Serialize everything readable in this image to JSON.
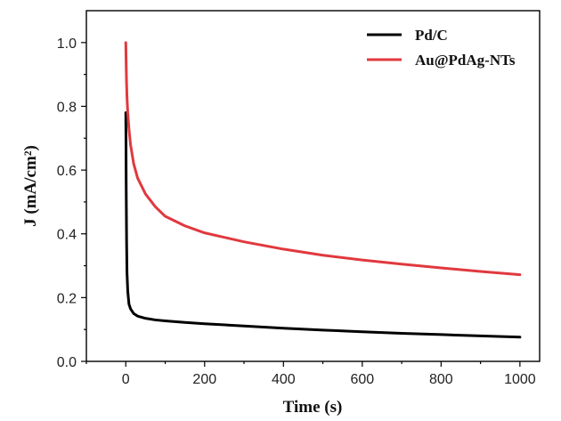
{
  "chart_data": {
    "type": "line",
    "xlabel": "Time (s)",
    "ylabel": "J (mA/cm²)",
    "xlim": [
      -100,
      1050
    ],
    "ylim": [
      0.0,
      1.1
    ],
    "xticks": [
      0,
      200,
      400,
      600,
      800,
      1000
    ],
    "xtick_labels": [
      "0",
      "200",
      "400",
      "600",
      "800",
      "1000"
    ],
    "yticks": [
      0.0,
      0.2,
      0.4,
      0.6,
      0.8,
      1.0
    ],
    "ytick_labels": [
      "0.0",
      "0.2",
      "0.4",
      "0.6",
      "0.8",
      "1.0"
    ],
    "grid": false,
    "legend_position": "top-right",
    "series": [
      {
        "name": "Pd/C",
        "color": "#000000",
        "x": [
          0,
          0.5,
          1,
          2,
          3,
          5,
          8,
          12,
          20,
          30,
          50,
          75,
          100,
          150,
          200,
          300,
          400,
          500,
          600,
          700,
          800,
          900,
          1000
        ],
        "y": [
          0.78,
          0.7,
          0.55,
          0.38,
          0.28,
          0.22,
          0.18,
          0.165,
          0.15,
          0.142,
          0.135,
          0.13,
          0.127,
          0.122,
          0.118,
          0.111,
          0.104,
          0.098,
          0.093,
          0.088,
          0.084,
          0.08,
          0.076
        ]
      },
      {
        "name": "Au@PdAg-NTs",
        "color": "#e0393e",
        "x": [
          0,
          1,
          2,
          3,
          5,
          8,
          12,
          20,
          30,
          50,
          75,
          100,
          150,
          200,
          300,
          400,
          500,
          600,
          700,
          800,
          900,
          1000
        ],
        "y": [
          1.0,
          0.93,
          0.87,
          0.83,
          0.78,
          0.73,
          0.68,
          0.62,
          0.575,
          0.525,
          0.485,
          0.455,
          0.425,
          0.403,
          0.375,
          0.352,
          0.333,
          0.318,
          0.305,
          0.293,
          0.282,
          0.272
        ]
      }
    ]
  }
}
